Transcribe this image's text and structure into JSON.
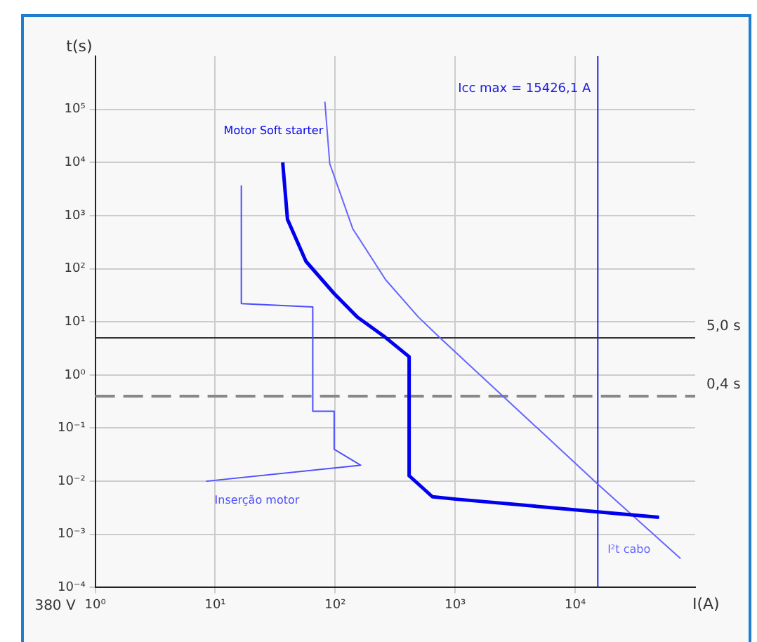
{
  "chart_data": {
    "type": "line",
    "xlabel": "I(A)",
    "ylabel": "t(s)",
    "log": "xy",
    "grid": true,
    "xlim": [
      1,
      100000
    ],
    "ylim": [
      0.0001,
      1000000
    ],
    "xticks": [
      {
        "value": 1,
        "label": "10⁰"
      },
      {
        "value": 10,
        "label": "10¹"
      },
      {
        "value": 100,
        "label": "10²"
      },
      {
        "value": 1000,
        "label": "10³"
      },
      {
        "value": 10000,
        "label": "10⁴"
      }
    ],
    "yticks": [
      {
        "value": 0.0001,
        "label": "10⁻⁴"
      },
      {
        "value": 0.001,
        "label": "10⁻³"
      },
      {
        "value": 0.01,
        "label": "10⁻²"
      },
      {
        "value": 0.1,
        "label": "10⁻¹"
      },
      {
        "value": 1,
        "label": "10⁰"
      },
      {
        "value": 10,
        "label": "10¹"
      },
      {
        "value": 100,
        "label": "10²"
      },
      {
        "value": 1000,
        "label": "10³"
      },
      {
        "value": 10000,
        "label": "10⁴"
      },
      {
        "value": 100000,
        "label": "10⁵"
      }
    ],
    "series": [
      {
        "name": "Motor Soft starter",
        "color": "#0000ee",
        "x": [
          36.5,
          40,
          57,
          98,
          153,
          262,
          413,
          413,
          646,
          1014,
          50000
        ],
        "values": [
          10000,
          850,
          138,
          34,
          12.3,
          5.1,
          2.2,
          0.0127,
          0.0051,
          0.0046,
          0.0021
        ]
      },
      {
        "name": "Inserção motor",
        "color": "#4d4dff",
        "x": [
          16.5,
          16.5,
          65,
          65,
          98,
          98,
          163,
          8.4
        ],
        "values": [
          3600,
          22,
          19,
          0.207,
          0.207,
          0.04,
          0.02,
          0.01
        ]
      },
      {
        "name": "I²t cabo",
        "color": "#6666ff",
        "x": [
          82,
          90,
          140,
          263,
          493,
          740,
          15700,
          75500
        ],
        "values": [
          140000,
          9500,
          565,
          62,
          12.3,
          5.1,
          0.0085,
          0.00035
        ]
      }
    ],
    "ref_lines": [
      {
        "axis": "x",
        "value": 15426.1,
        "label": "Icc max = 15426,1 A",
        "color": "#2020e0",
        "line_style": "solid"
      },
      {
        "axis": "y",
        "value": 5,
        "label": "5,0 s",
        "color": "#333333",
        "line_style": "solid"
      },
      {
        "axis": "y",
        "value": 0.4,
        "label": "0,4 s",
        "color": "#888888",
        "line_style": "dashed"
      }
    ],
    "annotations": [
      "380 V"
    ]
  }
}
